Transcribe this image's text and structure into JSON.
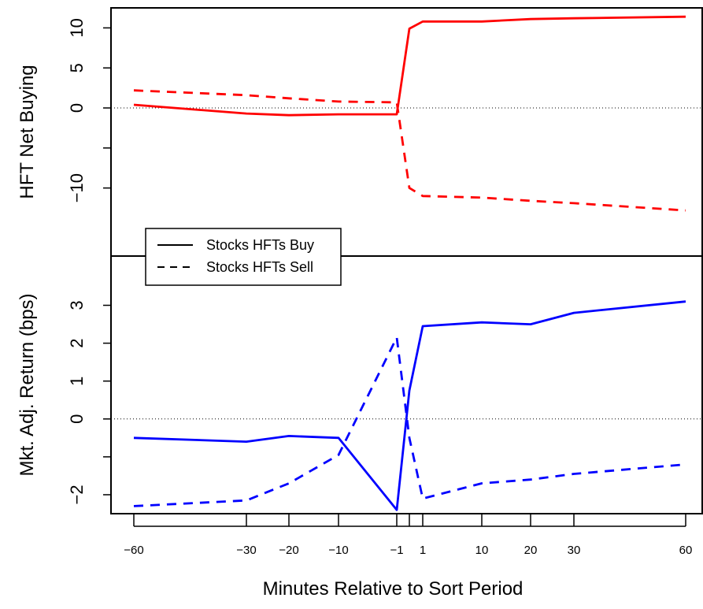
{
  "chart_data": {
    "type": "line",
    "xlabel": "Minutes Relative to Sort Period",
    "x_ticks": [
      -60,
      -30,
      -20,
      -10,
      -1,
      0,
      1,
      10,
      20,
      30,
      60
    ],
    "x_tick_labels": [
      "−60",
      "−30",
      "−20",
      "−10",
      "−1",
      "",
      "1",
      "10",
      "20",
      "30",
      "60"
    ],
    "legend": {
      "placement": "left, between panels",
      "entries": [
        {
          "label": "Stocks HFTs Buy",
          "linestyle": "solid"
        },
        {
          "label": "Stocks HFTs Sell",
          "linestyle": "dashed"
        }
      ]
    },
    "panels": [
      {
        "ylabel": "HFT Net Buying",
        "ylim": [
          -18.5,
          12.5
        ],
        "yticks": [
          -10,
          -5,
          0,
          5,
          10
        ],
        "ytick_labels": [
          "−10",
          "",
          "0",
          "5",
          "10"
        ],
        "reference_line": 0,
        "color": "#ff0000",
        "series": [
          {
            "name": "Stocks HFTs Buy",
            "linestyle": "solid",
            "x": [
              -60,
              -30,
              -20,
              -10,
              -1,
              0,
              1,
              10,
              20,
              30,
              60
            ],
            "y": [
              0.4,
              -0.7,
              -0.9,
              -0.8,
              -0.8,
              9.9,
              10.8,
              10.8,
              11.1,
              11.2,
              11.4
            ]
          },
          {
            "name": "Stocks HFTs Sell",
            "linestyle": "dashed",
            "x": [
              -60,
              -30,
              -20,
              -10,
              -1,
              0,
              1,
              10,
              20,
              30,
              60
            ],
            "y": [
              2.2,
              1.6,
              1.2,
              0.8,
              0.7,
              -10.0,
              -11.0,
              -11.2,
              -11.6,
              -11.9,
              -12.8
            ]
          }
        ]
      },
      {
        "ylabel": "Mkt. Adj. Return (bps)",
        "ylim": [
          -2.5,
          4.3
        ],
        "yticks": [
          -2,
          -1,
          0,
          1,
          2,
          3
        ],
        "ytick_labels": [
          "−2",
          "",
          "0",
          "1",
          "2",
          "3"
        ],
        "reference_line": 0,
        "color": "#0000ff",
        "series": [
          {
            "name": "Stocks HFTs Buy",
            "linestyle": "solid",
            "x": [
              -60,
              -30,
              -20,
              -10,
              -1,
              0,
              1,
              10,
              20,
              30,
              60
            ],
            "y": [
              -0.5,
              -0.6,
              -0.45,
              -0.5,
              -2.4,
              0.75,
              2.45,
              2.55,
              2.5,
              2.8,
              3.1
            ]
          },
          {
            "name": "Stocks HFTs Sell",
            "linestyle": "dashed",
            "x": [
              -60,
              -30,
              -20,
              -10,
              -1,
              0,
              1,
              10,
              20,
              30,
              60
            ],
            "y": [
              -2.3,
              -2.15,
              -1.7,
              -0.95,
              2.15,
              -0.5,
              -2.1,
              -1.7,
              -1.6,
              -1.45,
              -1.2
            ]
          }
        ]
      }
    ]
  }
}
